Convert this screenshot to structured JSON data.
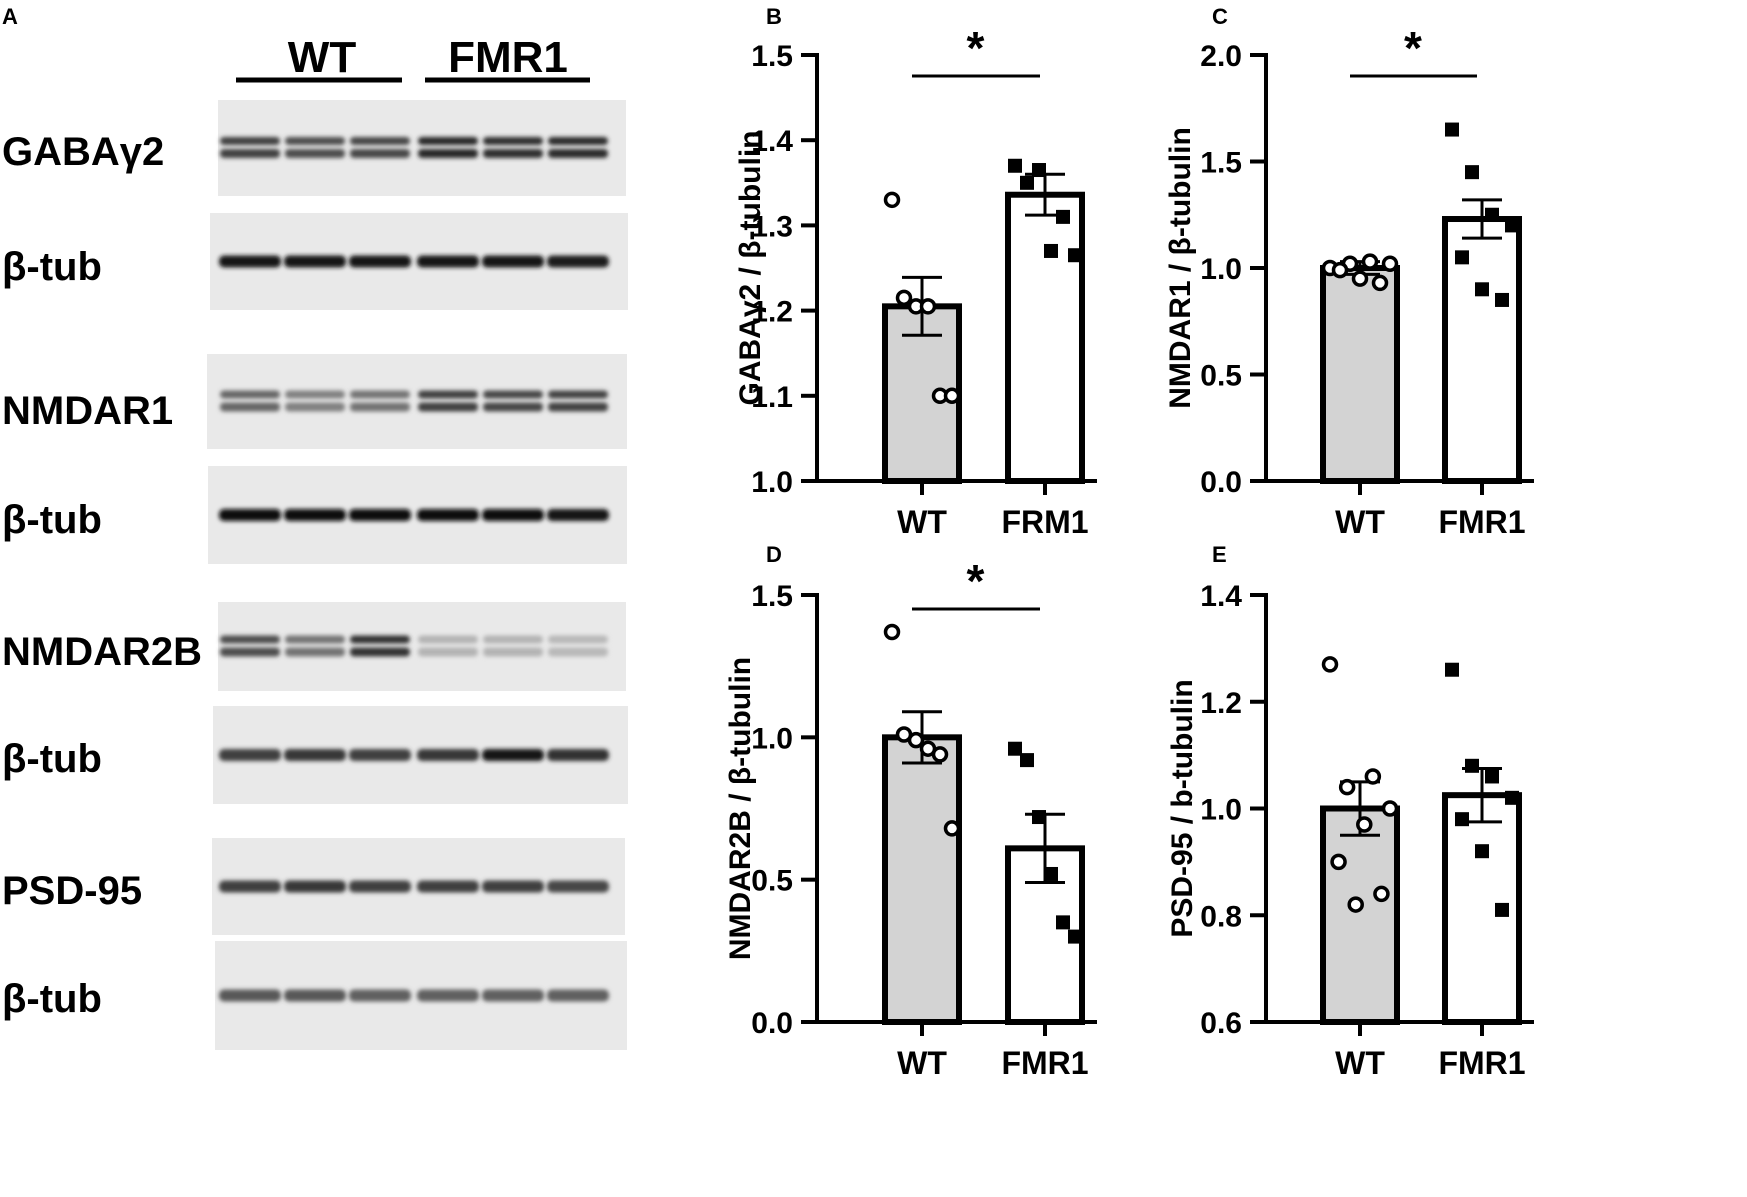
{
  "panel_a": {
    "letter": "A",
    "groups": [
      {
        "label": "WT",
        "lanes": [
          0,
          1,
          2
        ]
      },
      {
        "label": "FMR1",
        "lanes": [
          3,
          4,
          5
        ]
      }
    ],
    "blots": [
      {
        "label": "GABAγ2",
        "band_intensity": [
          0.75,
          0.7,
          0.72,
          0.85,
          0.82,
          0.84
        ],
        "double_band": true
      },
      {
        "label": "β-tub",
        "band_intensity": [
          0.9,
          0.9,
          0.9,
          0.9,
          0.9,
          0.88
        ],
        "double_band": false
      },
      {
        "label": "NMDAR1",
        "band_intensity": [
          0.6,
          0.5,
          0.55,
          0.75,
          0.72,
          0.74
        ],
        "double_band": true
      },
      {
        "label": "β-tub",
        "band_intensity": [
          0.95,
          0.95,
          0.95,
          0.95,
          0.95,
          0.93
        ],
        "double_band": false
      },
      {
        "label": "NMDAR2B",
        "band_intensity": [
          0.7,
          0.55,
          0.8,
          0.3,
          0.3,
          0.28
        ],
        "double_band": true
      },
      {
        "label": "β-tub",
        "band_intensity": [
          0.75,
          0.78,
          0.75,
          0.78,
          0.9,
          0.8
        ],
        "double_band": false
      },
      {
        "label": "PSD-95",
        "band_intensity": [
          0.75,
          0.78,
          0.75,
          0.75,
          0.75,
          0.72
        ],
        "double_band": false
      },
      {
        "label": "β-tub",
        "band_intensity": [
          0.65,
          0.65,
          0.62,
          0.62,
          0.62,
          0.62
        ],
        "double_band": false
      }
    ]
  },
  "chart_data": [
    {
      "letter": "B",
      "type": "bar",
      "categories": [
        "WT",
        "FRM1"
      ],
      "ylabel_main": "GABAγ2 / β-tubulin",
      "ylim": [
        1.0,
        1.5
      ],
      "yticks": [
        1.0,
        1.1,
        1.2,
        1.3,
        1.4,
        1.5
      ],
      "tick_format": 1,
      "means": [
        1.205,
        1.336
      ],
      "sem": [
        0.034,
        0.024
      ],
      "points": [
        [
          1.33,
          1.215,
          1.205,
          1.205,
          1.1,
          1.1
        ],
        [
          1.37,
          1.35,
          1.365,
          1.27,
          1.31,
          1.265
        ]
      ],
      "significance": "*",
      "colors": [
        "#d3d3d3",
        "#ffffff"
      ]
    },
    {
      "letter": "C",
      "type": "bar",
      "categories": [
        "WT",
        "FMR1"
      ],
      "ylabel_main": "NMDAR1 / β-tubulin",
      "ylim": [
        0.0,
        2.0
      ],
      "yticks": [
        0.0,
        0.5,
        1.0,
        1.5,
        2.0
      ],
      "tick_format": 1,
      "means": [
        1.0,
        1.23
      ],
      "sem": [
        0.03,
        0.09
      ],
      "points": [
        [
          1.0,
          1.02,
          1.03,
          1.02,
          0.99,
          0.95,
          0.93
        ],
        [
          1.65,
          1.45,
          1.25,
          1.2,
          1.05,
          0.9,
          0.85
        ]
      ],
      "significance": "*",
      "colors": [
        "#d3d3d3",
        "#ffffff"
      ]
    },
    {
      "letter": "D",
      "type": "bar",
      "categories": [
        "WT",
        "FMR1"
      ],
      "ylabel_main": "NMDAR2B / β-tubulin",
      "ylim": [
        0.0,
        1.5
      ],
      "yticks": [
        0.0,
        0.5,
        1.0,
        1.5
      ],
      "tick_format": 1,
      "means": [
        1.0,
        0.61
      ],
      "sem": [
        0.09,
        0.12
      ],
      "points": [
        [
          1.37,
          1.01,
          0.99,
          0.96,
          0.94,
          0.68
        ],
        [
          0.96,
          0.92,
          0.72,
          0.52,
          0.35,
          0.3
        ]
      ],
      "significance": "*",
      "colors": [
        "#d3d3d3",
        "#ffffff"
      ]
    },
    {
      "letter": "E",
      "type": "bar",
      "categories": [
        "WT",
        "FMR1"
      ],
      "ylabel_main": "PSD-95 / b-tubulin",
      "ylim": [
        0.6,
        1.4
      ],
      "yticks": [
        0.6,
        0.8,
        1.0,
        1.2,
        1.4
      ],
      "tick_format": 1,
      "means": [
        1.0,
        1.025
      ],
      "sem": [
        0.05,
        0.05
      ],
      "points": [
        [
          1.27,
          1.06,
          1.04,
          1.0,
          0.97,
          0.9,
          0.84,
          0.82
        ],
        [
          1.26,
          1.08,
          1.06,
          1.02,
          0.98,
          0.92,
          0.81
        ]
      ],
      "significance": "",
      "colors": [
        "#d3d3d3",
        "#ffffff"
      ]
    }
  ]
}
